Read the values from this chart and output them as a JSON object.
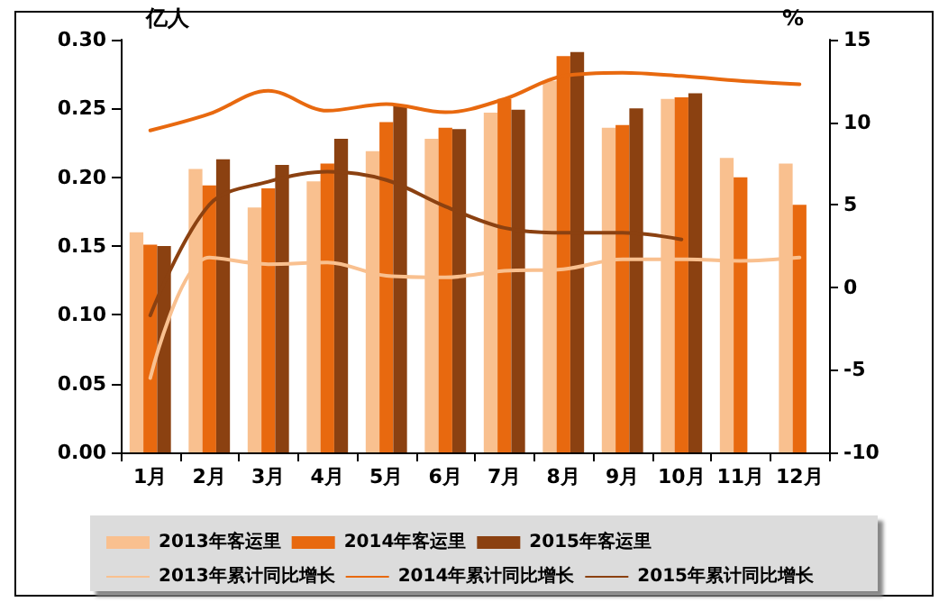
{
  "chart_data": {
    "type": "bar",
    "ylabel": "亿人",
    "y2label": "%",
    "categories": [
      "1月",
      "2月",
      "3月",
      "4月",
      "5月",
      "6月",
      "7月",
      "8月",
      "9月",
      "10月",
      "11月",
      "12月"
    ],
    "series": [
      {
        "name": "2013年客运里",
        "color": "#f9c08f",
        "values": [
          0.16,
          0.206,
          0.178,
          0.197,
          0.219,
          0.228,
          0.247,
          0.27,
          0.236,
          0.257,
          0.214,
          0.21
        ]
      },
      {
        "name": "2014年客运里",
        "color": "#e8690f",
        "values": [
          0.151,
          0.194,
          0.192,
          0.21,
          0.24,
          0.236,
          0.257,
          0.288,
          0.238,
          0.258,
          0.2,
          0.18
        ]
      },
      {
        "name": "2015年客运里",
        "color": "#8b4111",
        "values": [
          0.15,
          0.213,
          0.209,
          0.228,
          0.252,
          0.235,
          0.249,
          0.291,
          0.25,
          0.261,
          null,
          null
        ]
      },
      {
        "name": "2013年累计同比增长",
        "type": "line",
        "axis": "y2",
        "color": "#f9c08f",
        "values": [
          -5.5,
          1.8,
          1.4,
          1.5,
          0.7,
          0.6,
          1.0,
          1.1,
          1.7,
          1.7,
          1.6,
          1.8
        ]
      },
      {
        "name": "2014年累计同比增长",
        "type": "line",
        "axis": "y2",
        "color": "#e8690f",
        "values": [
          9.5,
          10.5,
          11.9,
          10.7,
          11.1,
          10.6,
          11.4,
          12.8,
          13.0,
          12.8,
          12.5,
          12.3
        ]
      },
      {
        "name": "2015年累计同比增长",
        "type": "line",
        "axis": "y2",
        "color": "#8b4111",
        "values": [
          -1.7,
          5.0,
          6.4,
          7.0,
          6.5,
          4.9,
          3.6,
          3.3,
          3.3,
          2.9,
          null,
          null
        ]
      }
    ],
    "ylim": [
      0,
      0.3
    ],
    "yticks": [
      {
        "value": 0,
        "label": "0.00"
      },
      {
        "value": 0.05,
        "label": "0.05"
      },
      {
        "value": 0.1,
        "label": "0.10"
      },
      {
        "value": 0.15,
        "label": "0.15"
      },
      {
        "value": 0.2,
        "label": "0.20"
      },
      {
        "value": 0.25,
        "label": "0.25"
      },
      {
        "value": 0.3,
        "label": "0.30"
      }
    ],
    "y2lim": [
      -10,
      15
    ],
    "y2ticks": [
      -10,
      -5,
      0,
      5,
      10,
      15
    ],
    "legend": "bottom",
    "grid": false,
    "marker": "none",
    "line_style": "solid"
  }
}
